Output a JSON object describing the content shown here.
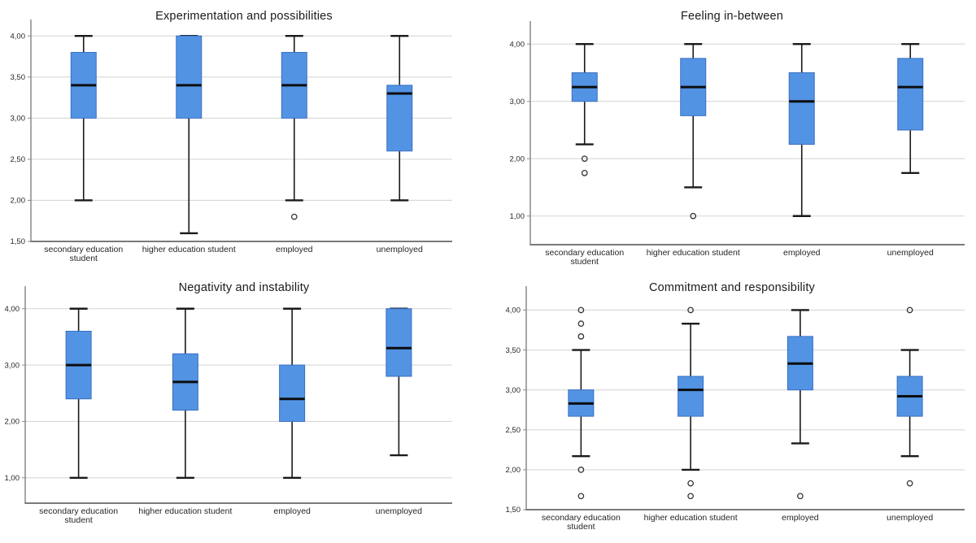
{
  "figure": {
    "background": "#ffffff"
  },
  "style": {
    "box_fill": "#5293e4",
    "box_border": "#3a6fc0",
    "median_color": "#0d0d0d",
    "whisker_color": "#1a1a1a",
    "outlier_color": "#333333",
    "grid_color": "#d7d7d7",
    "axis_color": "#8a8a8a",
    "text_color": "#262626"
  },
  "chart_data": [
    {
      "type": "box",
      "title": "Experimentation and possibilities",
      "xlabel": "",
      "ylabel": "",
      "grid": true,
      "legend": false,
      "ylim": [
        1.5,
        4.2
      ],
      "yticks": [
        {
          "value": 4.0,
          "label": "4,00"
        },
        {
          "value": 3.5,
          "label": "3,50"
        },
        {
          "value": 3.0,
          "label": "3,00"
        },
        {
          "value": 2.5,
          "label": "2,50"
        },
        {
          "value": 2.0,
          "label": "2,00"
        },
        {
          "value": 1.5,
          "label": "1,50"
        }
      ],
      "categories": [
        [
          "secondary education",
          "student"
        ],
        [
          "higher education student"
        ],
        [
          "employed"
        ],
        [
          "unemployed"
        ]
      ],
      "boxes": [
        {
          "category": "secondary education student",
          "whisker_low": 2.0,
          "q1": 3.0,
          "median": 3.4,
          "q3": 3.8,
          "whisker_high": 4.0,
          "outliers": []
        },
        {
          "category": "higher education student",
          "whisker_low": 1.6,
          "q1": 3.0,
          "median": 3.4,
          "q3": 4.0,
          "whisker_high": 4.0,
          "outliers": []
        },
        {
          "category": "employed",
          "whisker_low": 2.0,
          "q1": 3.0,
          "median": 3.4,
          "q3": 3.8,
          "whisker_high": 4.0,
          "outliers": [
            1.8
          ]
        },
        {
          "category": "unemployed",
          "whisker_low": 2.0,
          "q1": 2.6,
          "median": 3.3,
          "q3": 3.4,
          "whisker_high": 4.0,
          "outliers": []
        }
      ]
    },
    {
      "type": "box",
      "title": "Feeling in-between",
      "xlabel": "",
      "ylabel": "",
      "grid": true,
      "legend": false,
      "ylim": [
        0.5,
        4.4
      ],
      "yticks": [
        {
          "value": 4.0,
          "label": "4,00"
        },
        {
          "value": 3.0,
          "label": "3,00"
        },
        {
          "value": 2.0,
          "label": "2,00"
        },
        {
          "value": 1.0,
          "label": "1,00"
        }
      ],
      "categories": [
        [
          "secondary education",
          "student"
        ],
        [
          "higher education student"
        ],
        [
          "employed"
        ],
        [
          "unemployed"
        ]
      ],
      "boxes": [
        {
          "category": "secondary education student",
          "whisker_low": 2.25,
          "q1": 3.0,
          "median": 3.25,
          "q3": 3.5,
          "whisker_high": 4.0,
          "outliers": [
            2.0,
            1.75
          ]
        },
        {
          "category": "higher education student",
          "whisker_low": 1.5,
          "q1": 2.75,
          "median": 3.25,
          "q3": 3.75,
          "whisker_high": 4.0,
          "outliers": [
            1.0
          ]
        },
        {
          "category": "employed",
          "whisker_low": 1.0,
          "q1": 2.25,
          "median": 3.0,
          "q3": 3.5,
          "whisker_high": 4.0,
          "outliers": []
        },
        {
          "category": "unemployed",
          "whisker_low": 1.75,
          "q1": 2.5,
          "median": 3.25,
          "q3": 3.75,
          "whisker_high": 4.0,
          "outliers": []
        }
      ]
    },
    {
      "type": "box",
      "title": "Negativity and instability",
      "xlabel": "",
      "ylabel": "",
      "grid": true,
      "legend": false,
      "ylim": [
        0.55,
        4.4
      ],
      "yticks": [
        {
          "value": 4.0,
          "label": "4,00"
        },
        {
          "value": 3.0,
          "label": "3,00"
        },
        {
          "value": 2.0,
          "label": "2,00"
        },
        {
          "value": 1.0,
          "label": "1,00"
        }
      ],
      "categories": [
        [
          "secondary education",
          "student"
        ],
        [
          "higher education student"
        ],
        [
          "employed"
        ],
        [
          "unemployed"
        ]
      ],
      "boxes": [
        {
          "category": "secondary education student",
          "whisker_low": 1.0,
          "q1": 2.4,
          "median": 3.0,
          "q3": 3.6,
          "whisker_high": 4.0,
          "outliers": []
        },
        {
          "category": "higher education student",
          "whisker_low": 1.0,
          "q1": 2.2,
          "median": 2.7,
          "q3": 3.2,
          "whisker_high": 4.0,
          "outliers": []
        },
        {
          "category": "employed",
          "whisker_low": 1.0,
          "q1": 2.0,
          "median": 2.4,
          "q3": 3.0,
          "whisker_high": 4.0,
          "outliers": []
        },
        {
          "category": "unemployed",
          "whisker_low": 1.4,
          "q1": 2.8,
          "median": 3.3,
          "q3": 4.0,
          "whisker_high": 4.0,
          "outliers": []
        }
      ]
    },
    {
      "type": "box",
      "title": "Commitment and responsibility",
      "xlabel": "",
      "ylabel": "",
      "grid": true,
      "legend": false,
      "ylim": [
        1.5,
        4.3
      ],
      "yticks": [
        {
          "value": 4.0,
          "label": "4,00"
        },
        {
          "value": 3.5,
          "label": "3,50"
        },
        {
          "value": 3.0,
          "label": "3,00"
        },
        {
          "value": 2.5,
          "label": "2,50"
        },
        {
          "value": 2.0,
          "label": "2,00"
        },
        {
          "value": 1.5,
          "label": "1,50"
        }
      ],
      "categories": [
        [
          "secondary education",
          "student"
        ],
        [
          "higher education student"
        ],
        [
          "employed"
        ],
        [
          "unemployed"
        ]
      ],
      "boxes": [
        {
          "category": "secondary education student",
          "whisker_low": 2.17,
          "q1": 2.67,
          "median": 2.83,
          "q3": 3.0,
          "whisker_high": 3.5,
          "outliers": [
            4.0,
            3.83,
            3.67,
            2.0,
            1.67
          ]
        },
        {
          "category": "higher education student",
          "whisker_low": 2.0,
          "q1": 2.67,
          "median": 3.0,
          "q3": 3.17,
          "whisker_high": 3.83,
          "outliers": [
            4.0,
            1.83,
            1.67
          ]
        },
        {
          "category": "employed",
          "whisker_low": 2.33,
          "q1": 3.0,
          "median": 3.33,
          "q3": 3.67,
          "whisker_high": 4.0,
          "outliers": [
            1.67
          ]
        },
        {
          "category": "unemployed",
          "whisker_low": 2.17,
          "q1": 2.67,
          "median": 2.92,
          "q3": 3.17,
          "whisker_high": 3.5,
          "outliers": [
            4.0,
            1.83
          ]
        }
      ]
    }
  ]
}
